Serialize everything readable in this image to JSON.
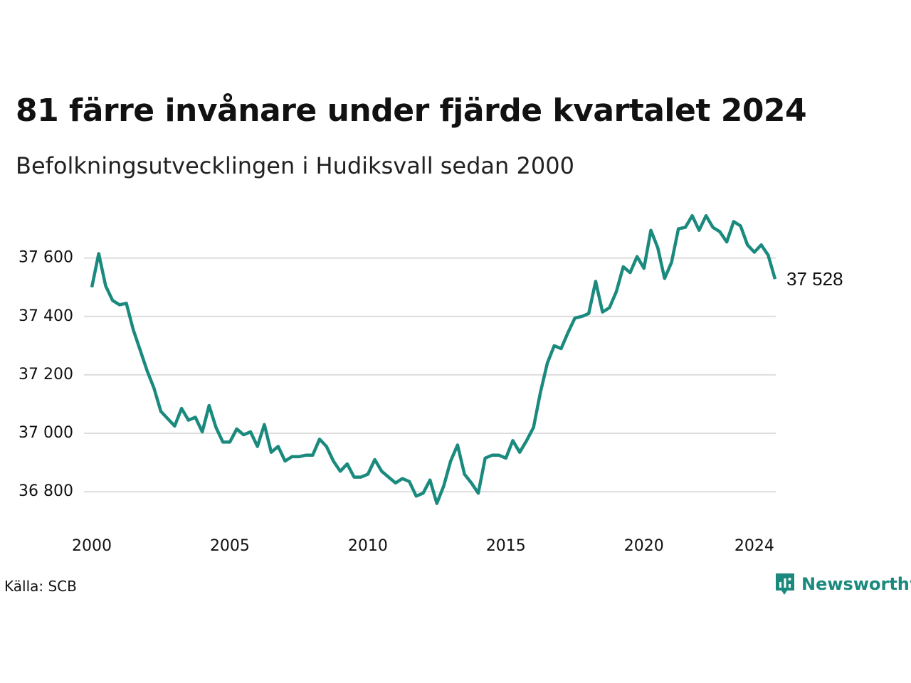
{
  "title": "81 färre invånare under fjärde kvartalet 2024",
  "subtitle": "Befolkningsutvecklingen i Hudiksvall sedan 2000",
  "source": "Källa: SCB",
  "brand": {
    "name": "Newsworthy",
    "icon": "newsworthy-logo-icon",
    "color": "#1b8a7e"
  },
  "chart_data": {
    "type": "line",
    "line_color": "#1b8a7e",
    "grid": true,
    "xlim": [
      2000,
      2024.75
    ],
    "ylim": [
      36720,
      37760
    ],
    "x_ticks": [
      2000,
      2005,
      2010,
      2015,
      2020,
      2024
    ],
    "x_tick_labels": [
      "2000",
      "2005",
      "2010",
      "2015",
      "2020",
      "2024"
    ],
    "y_ticks": [
      36800,
      37000,
      37200,
      37400,
      37600
    ],
    "y_tick_labels": [
      "36 800",
      "37 000",
      "37 200",
      "37 400",
      "37 600"
    ],
    "end_label": "37 528",
    "series": [
      {
        "x_start": 2000,
        "x_step": 0.25,
        "values": [
          37500,
          37615,
          37505,
          37455,
          37440,
          37445,
          37355,
          37285,
          37215,
          37155,
          37075,
          37050,
          37025,
          37085,
          37045,
          37055,
          37005,
          37095,
          37020,
          36970,
          36970,
          37015,
          36995,
          37005,
          36955,
          37030,
          36935,
          36955,
          36905,
          36920,
          36920,
          36925,
          36925,
          36980,
          36955,
          36905,
          36870,
          36895,
          36850,
          36850,
          36860,
          36910,
          36870,
          36850,
          36830,
          36845,
          36835,
          36785,
          36795,
          36840,
          36760,
          36820,
          36905,
          36960,
          36860,
          36830,
          36795,
          36915,
          36925,
          36925,
          36915,
          36975,
          36935,
          36975,
          37020,
          37140,
          37240,
          37300,
          37290,
          37345,
          37395,
          37400,
          37410,
          37520,
          37415,
          37430,
          37485,
          37570,
          37550,
          37605,
          37565,
          37695,
          37635,
          37530,
          37585,
          37700,
          37705,
          37745,
          37695,
          37745,
          37705,
          37690,
          37655,
          37725,
          37710,
          37645,
          37620,
          37645,
          37610,
          37528
        ]
      }
    ]
  }
}
